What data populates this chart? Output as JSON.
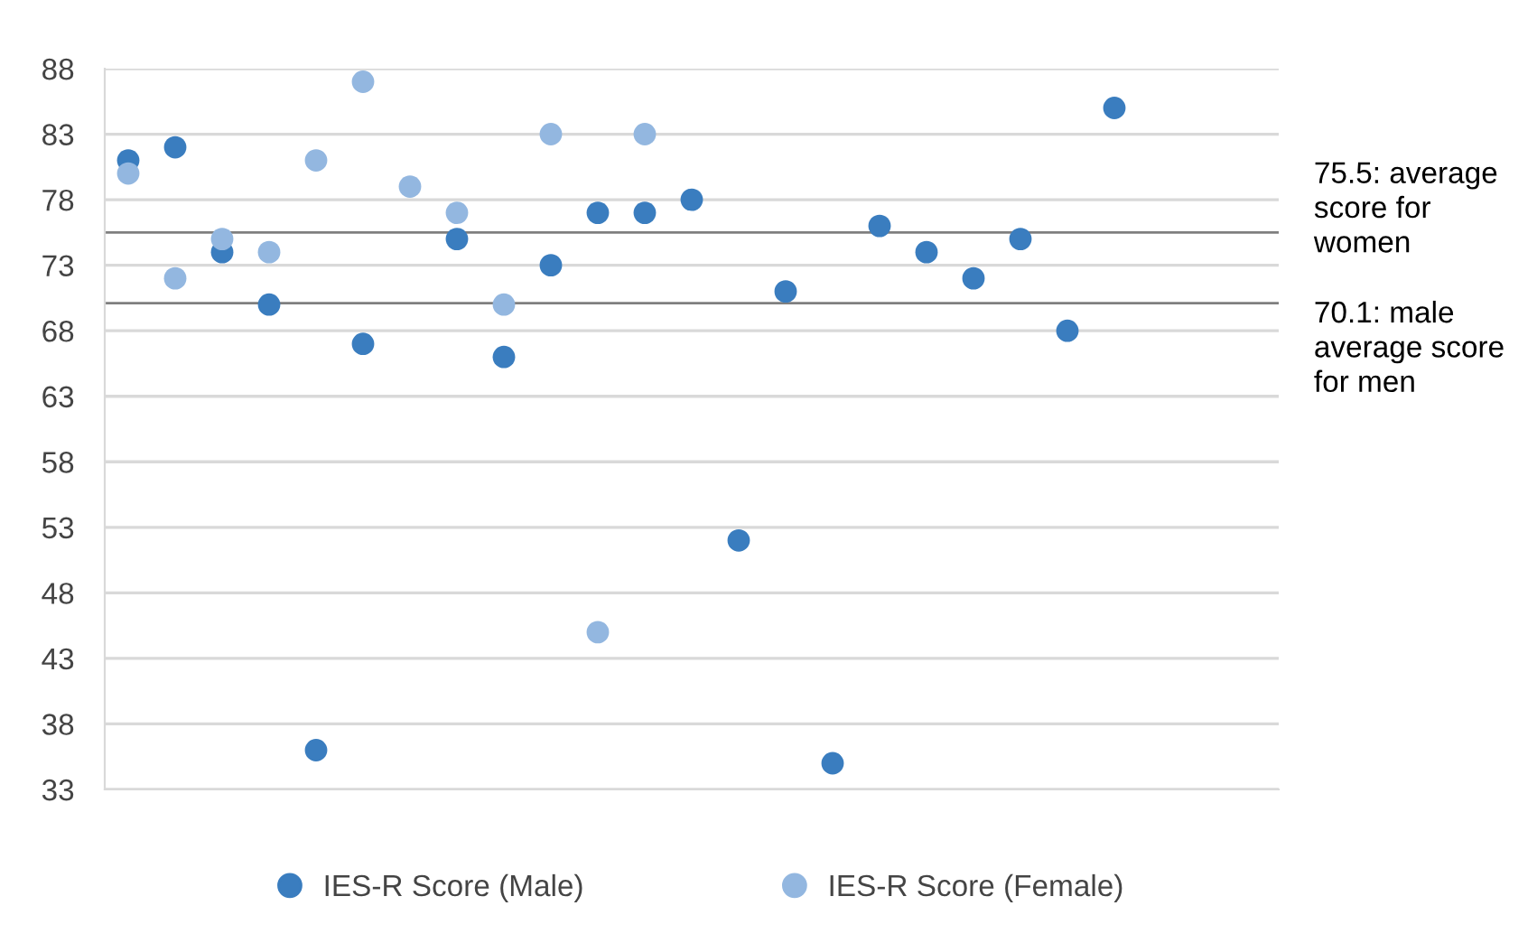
{
  "chart_data": {
    "type": "scatter",
    "categories": [
      null,
      null,
      null,
      null,
      null,
      null,
      null,
      null,
      null,
      null,
      null,
      null,
      null,
      null,
      null,
      null,
      null,
      null,
      null,
      null,
      null,
      null,
      null,
      null,
      null
    ],
    "series": [
      {
        "name": "IES-R Score (Male)",
        "color": "#3a7dbf",
        "values": [
          81,
          82,
          74,
          70,
          36,
          67,
          null,
          75,
          66,
          73,
          77,
          77,
          78,
          52,
          71,
          35,
          76,
          74,
          72,
          75,
          68,
          85,
          null,
          null,
          null
        ]
      },
      {
        "name": "IES-R Score (Female)",
        "color": "#93b7e0",
        "values": [
          80,
          72,
          75,
          74,
          81,
          87,
          79,
          77,
          70,
          83,
          45,
          83,
          null,
          null,
          null,
          null,
          null,
          null,
          null,
          null,
          null,
          null,
          null,
          null,
          null
        ]
      }
    ],
    "ylim": [
      33,
      88
    ],
    "yticks": [
      33,
      38,
      43,
      48,
      53,
      58,
      63,
      68,
      73,
      78,
      83,
      88
    ],
    "tick_labels": "y",
    "grid": "y",
    "legend": "bottom",
    "marker": "circle",
    "ref_lines": [
      {
        "axis": "y",
        "value": 75.5,
        "label": "75.5: average\nscore for\nwomen",
        "color": "#7f7f7f"
      },
      {
        "axis": "y",
        "value": 70.1,
        "label": "70.1: male\naverage score\nfor men",
        "color": "#7f7f7f"
      }
    ]
  }
}
